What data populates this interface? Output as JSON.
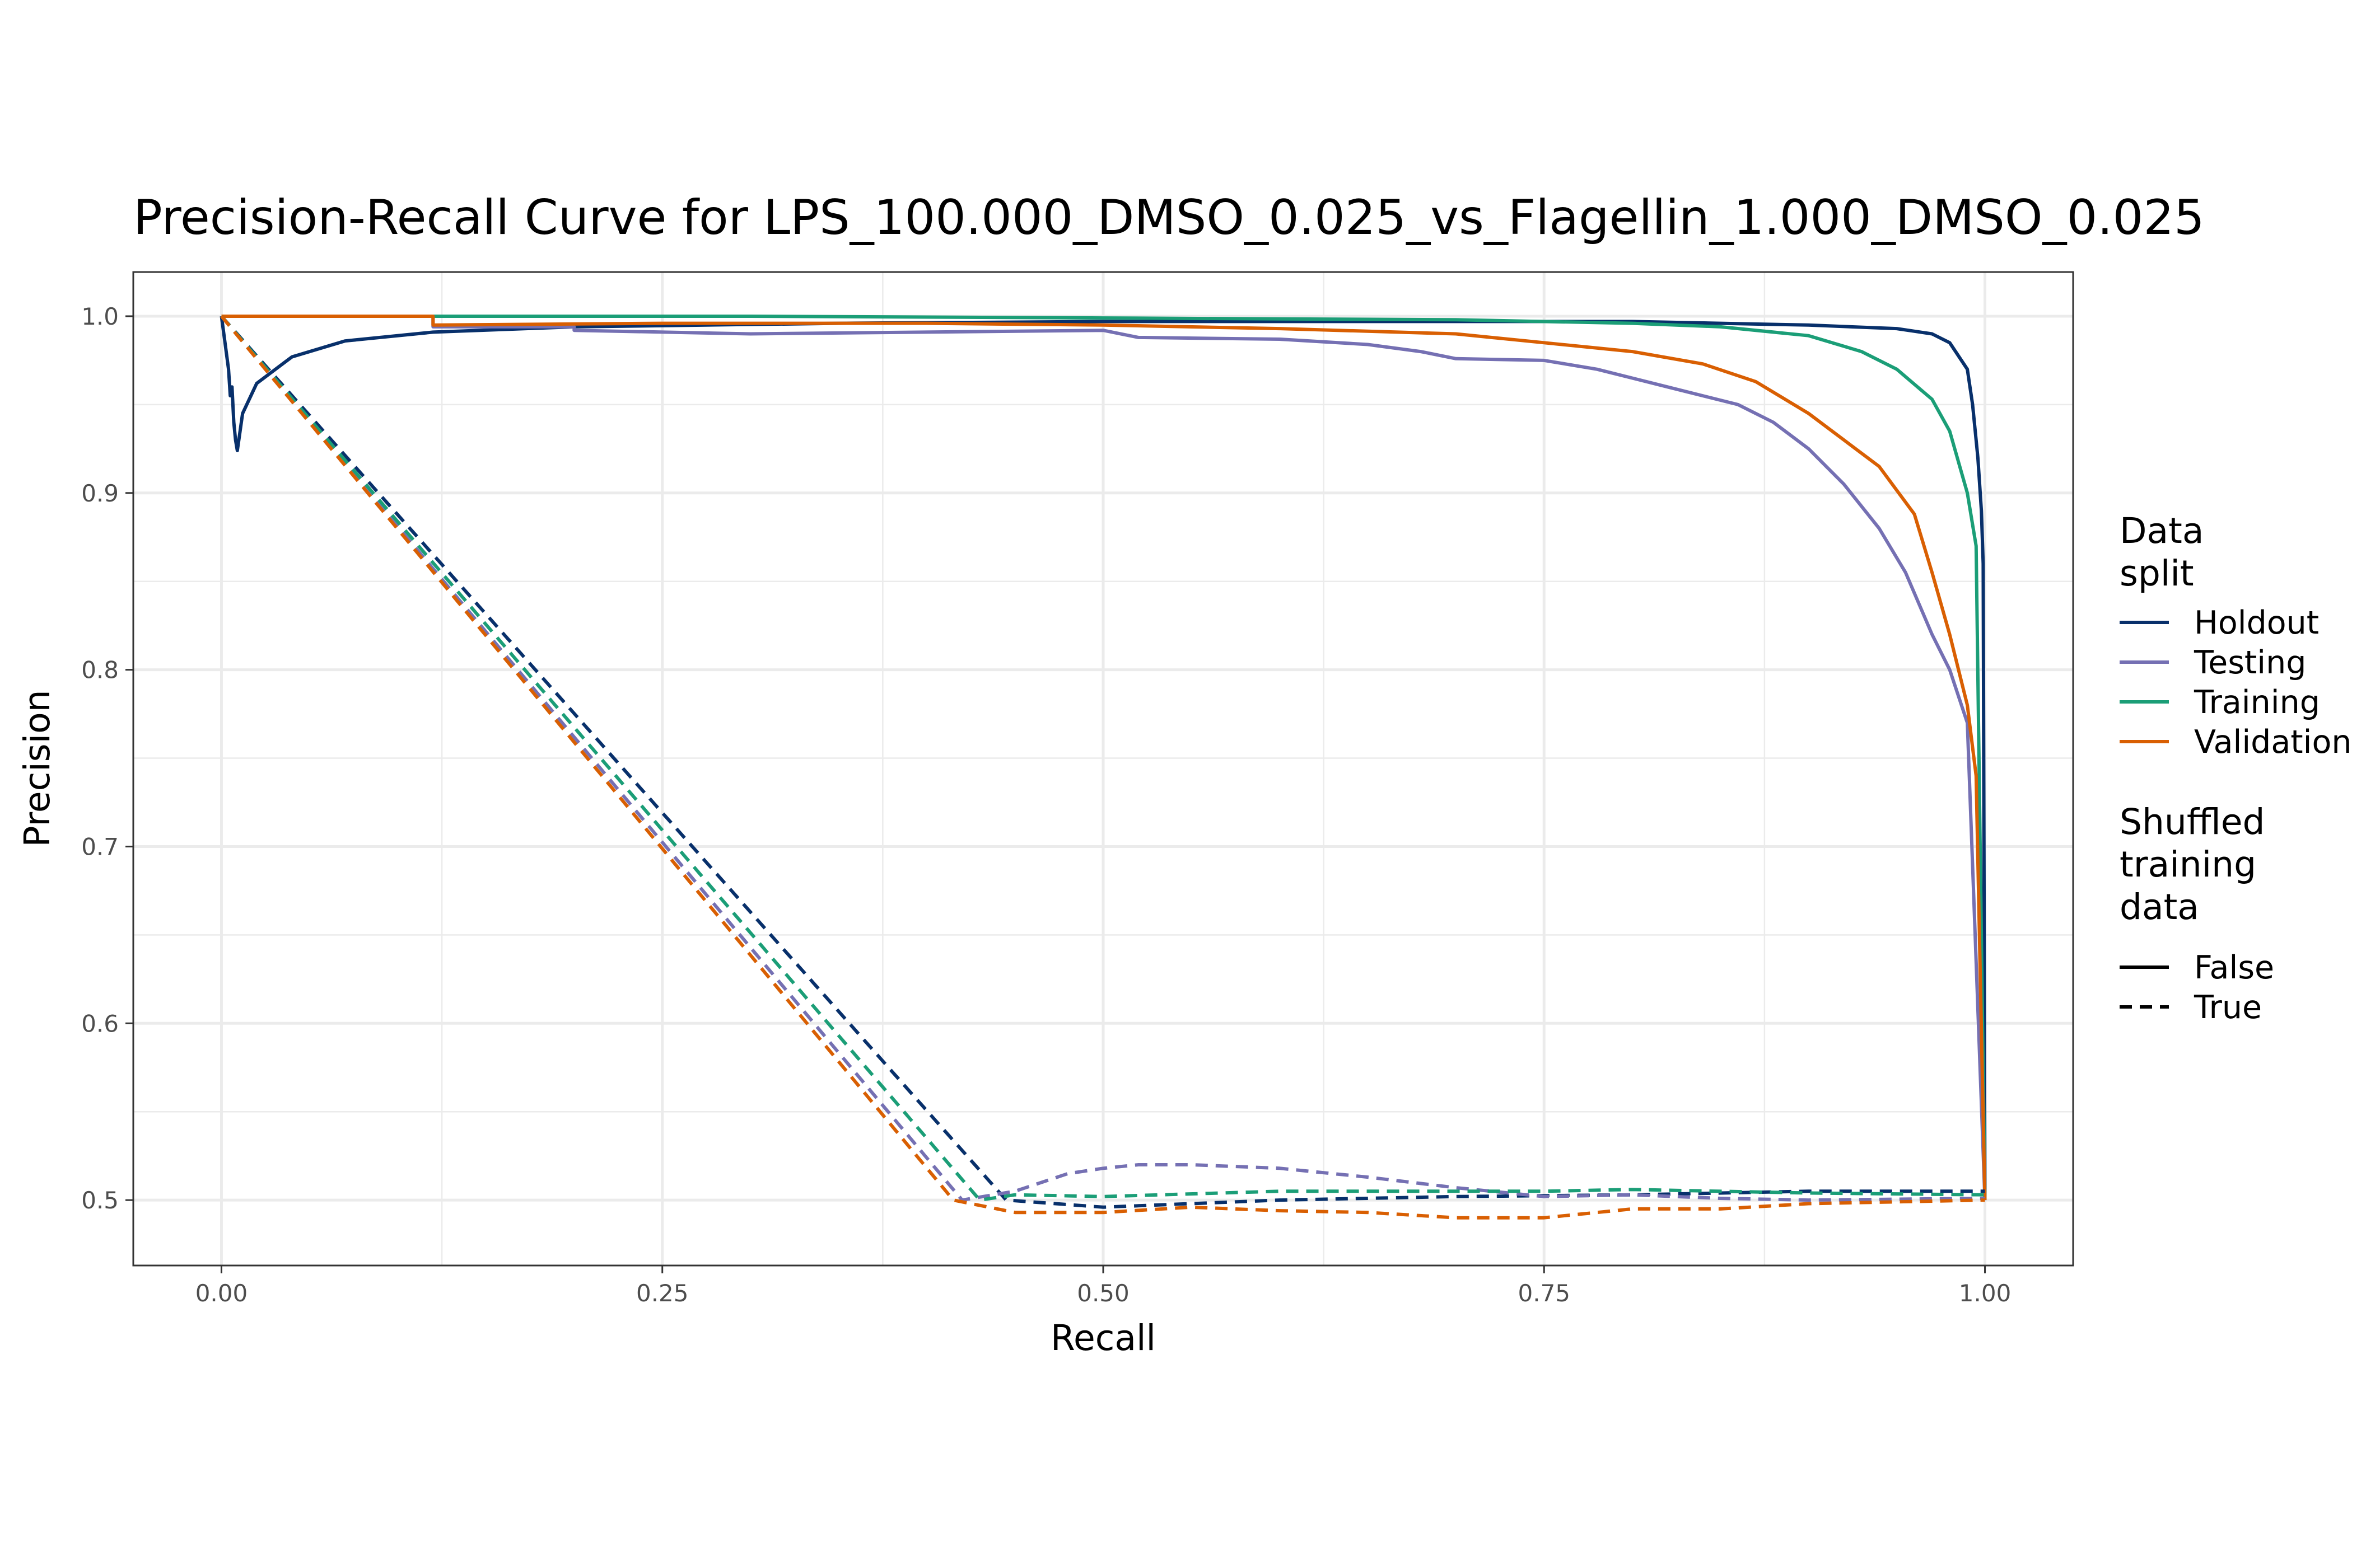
{
  "chart_data": {
    "type": "line",
    "title": "Precision-Recall Curve for LPS_100.000_DMSO_0.025_vs_Flagellin_1.000_DMSO_0.025",
    "xlabel": "Recall",
    "ylabel": "Precision",
    "xlim": [
      -0.05,
      1.05
    ],
    "ylim": [
      0.463,
      1.025
    ],
    "x_ticks": [
      "0.00",
      "0.25",
      "0.50",
      "0.75",
      "1.00"
    ],
    "y_ticks": [
      "0.5",
      "0.6",
      "0.7",
      "0.8",
      "0.9",
      "1.0"
    ],
    "grid": true,
    "legend_position": "right",
    "legend": {
      "color_title": [
        "Data",
        "split"
      ],
      "linetype_title": [
        "Shuffled",
        "training",
        "data"
      ],
      "linetype_entries": [
        "False",
        "True"
      ]
    },
    "colors": {
      "Holdout": "#08306b",
      "Testing": "#7570b3",
      "Training": "#1b9e77",
      "Validation": "#d95f02"
    },
    "series": [
      {
        "name": "Holdout",
        "shuffled": "False",
        "points": [
          [
            0.0,
            1.0
          ],
          [
            0.002,
            0.985
          ],
          [
            0.004,
            0.97
          ],
          [
            0.005,
            0.955
          ],
          [
            0.006,
            0.96
          ],
          [
            0.007,
            0.94
          ],
          [
            0.008,
            0.93
          ],
          [
            0.009,
            0.924
          ],
          [
            0.012,
            0.945
          ],
          [
            0.02,
            0.962
          ],
          [
            0.04,
            0.977
          ],
          [
            0.07,
            0.986
          ],
          [
            0.12,
            0.991
          ],
          [
            0.2,
            0.994
          ],
          [
            0.35,
            0.996
          ],
          [
            0.5,
            0.997
          ],
          [
            0.7,
            0.997
          ],
          [
            0.8,
            0.997
          ],
          [
            0.9,
            0.995
          ],
          [
            0.95,
            0.993
          ],
          [
            0.97,
            0.99
          ],
          [
            0.98,
            0.985
          ],
          [
            0.99,
            0.97
          ],
          [
            0.993,
            0.95
          ],
          [
            0.996,
            0.92
          ],
          [
            0.998,
            0.89
          ],
          [
            0.999,
            0.86
          ],
          [
            1.0,
            0.5
          ]
        ]
      },
      {
        "name": "Testing",
        "shuffled": "False",
        "points": [
          [
            0.0,
            1.0
          ],
          [
            0.12,
            1.0
          ],
          [
            0.12,
            0.994
          ],
          [
            0.2,
            0.994
          ],
          [
            0.2,
            0.992
          ],
          [
            0.3,
            0.99
          ],
          [
            0.5,
            0.992
          ],
          [
            0.52,
            0.988
          ],
          [
            0.6,
            0.987
          ],
          [
            0.65,
            0.984
          ],
          [
            0.68,
            0.98
          ],
          [
            0.7,
            0.976
          ],
          [
            0.75,
            0.975
          ],
          [
            0.78,
            0.97
          ],
          [
            0.82,
            0.96
          ],
          [
            0.86,
            0.95
          ],
          [
            0.88,
            0.94
          ],
          [
            0.9,
            0.925
          ],
          [
            0.92,
            0.905
          ],
          [
            0.94,
            0.88
          ],
          [
            0.955,
            0.855
          ],
          [
            0.97,
            0.82
          ],
          [
            0.98,
            0.8
          ],
          [
            0.99,
            0.77
          ],
          [
            1.0,
            0.5
          ]
        ]
      },
      {
        "name": "Training",
        "shuffled": "False",
        "points": [
          [
            0.0,
            1.0
          ],
          [
            0.3,
            1.0
          ],
          [
            0.5,
            0.999
          ],
          [
            0.7,
            0.998
          ],
          [
            0.8,
            0.996
          ],
          [
            0.85,
            0.994
          ],
          [
            0.9,
            0.989
          ],
          [
            0.93,
            0.98
          ],
          [
            0.95,
            0.97
          ],
          [
            0.97,
            0.953
          ],
          [
            0.98,
            0.935
          ],
          [
            0.99,
            0.9
          ],
          [
            0.995,
            0.87
          ],
          [
            1.0,
            0.5
          ]
        ]
      },
      {
        "name": "Validation",
        "shuffled": "False",
        "points": [
          [
            0.0,
            1.0
          ],
          [
            0.12,
            1.0
          ],
          [
            0.12,
            0.995
          ],
          [
            0.25,
            0.996
          ],
          [
            0.4,
            0.996
          ],
          [
            0.5,
            0.995
          ],
          [
            0.6,
            0.993
          ],
          [
            0.7,
            0.99
          ],
          [
            0.75,
            0.985
          ],
          [
            0.8,
            0.98
          ],
          [
            0.84,
            0.973
          ],
          [
            0.87,
            0.963
          ],
          [
            0.9,
            0.945
          ],
          [
            0.92,
            0.93
          ],
          [
            0.94,
            0.915
          ],
          [
            0.96,
            0.888
          ],
          [
            0.97,
            0.855
          ],
          [
            0.98,
            0.82
          ],
          [
            0.99,
            0.78
          ],
          [
            0.995,
            0.74
          ],
          [
            1.0,
            0.5
          ]
        ]
      },
      {
        "name": "Holdout",
        "shuffled": "True",
        "points": [
          [
            0.0,
            1.0
          ],
          [
            0.445,
            0.5
          ],
          [
            0.5,
            0.496
          ],
          [
            0.6,
            0.5
          ],
          [
            0.7,
            0.502
          ],
          [
            0.8,
            0.503
          ],
          [
            0.9,
            0.505
          ],
          [
            1.0,
            0.505
          ]
        ]
      },
      {
        "name": "Testing",
        "shuffled": "True",
        "points": [
          [
            0.0,
            1.0
          ],
          [
            0.42,
            0.5
          ],
          [
            0.45,
            0.505
          ],
          [
            0.48,
            0.515
          ],
          [
            0.5,
            0.518
          ],
          [
            0.52,
            0.52
          ],
          [
            0.55,
            0.52
          ],
          [
            0.6,
            0.518
          ],
          [
            0.65,
            0.513
          ],
          [
            0.7,
            0.507
          ],
          [
            0.75,
            0.502
          ],
          [
            0.8,
            0.503
          ],
          [
            0.85,
            0.501
          ],
          [
            0.9,
            0.5
          ],
          [
            1.0,
            0.501
          ]
        ]
      },
      {
        "name": "Training",
        "shuffled": "True",
        "points": [
          [
            0.0,
            1.0
          ],
          [
            0.43,
            0.5
          ],
          [
            0.45,
            0.503
          ],
          [
            0.5,
            0.502
          ],
          [
            0.6,
            0.505
          ],
          [
            0.7,
            0.505
          ],
          [
            0.75,
            0.505
          ],
          [
            0.8,
            0.506
          ],
          [
            0.9,
            0.504
          ],
          [
            1.0,
            0.503
          ]
        ]
      },
      {
        "name": "Validation",
        "shuffled": "True",
        "points": [
          [
            0.0,
            1.0
          ],
          [
            0.415,
            0.5
          ],
          [
            0.45,
            0.493
          ],
          [
            0.5,
            0.493
          ],
          [
            0.55,
            0.496
          ],
          [
            0.6,
            0.494
          ],
          [
            0.65,
            0.493
          ],
          [
            0.7,
            0.49
          ],
          [
            0.75,
            0.49
          ],
          [
            0.8,
            0.495
          ],
          [
            0.85,
            0.495
          ],
          [
            0.9,
            0.498
          ],
          [
            1.0,
            0.5
          ]
        ]
      }
    ]
  }
}
